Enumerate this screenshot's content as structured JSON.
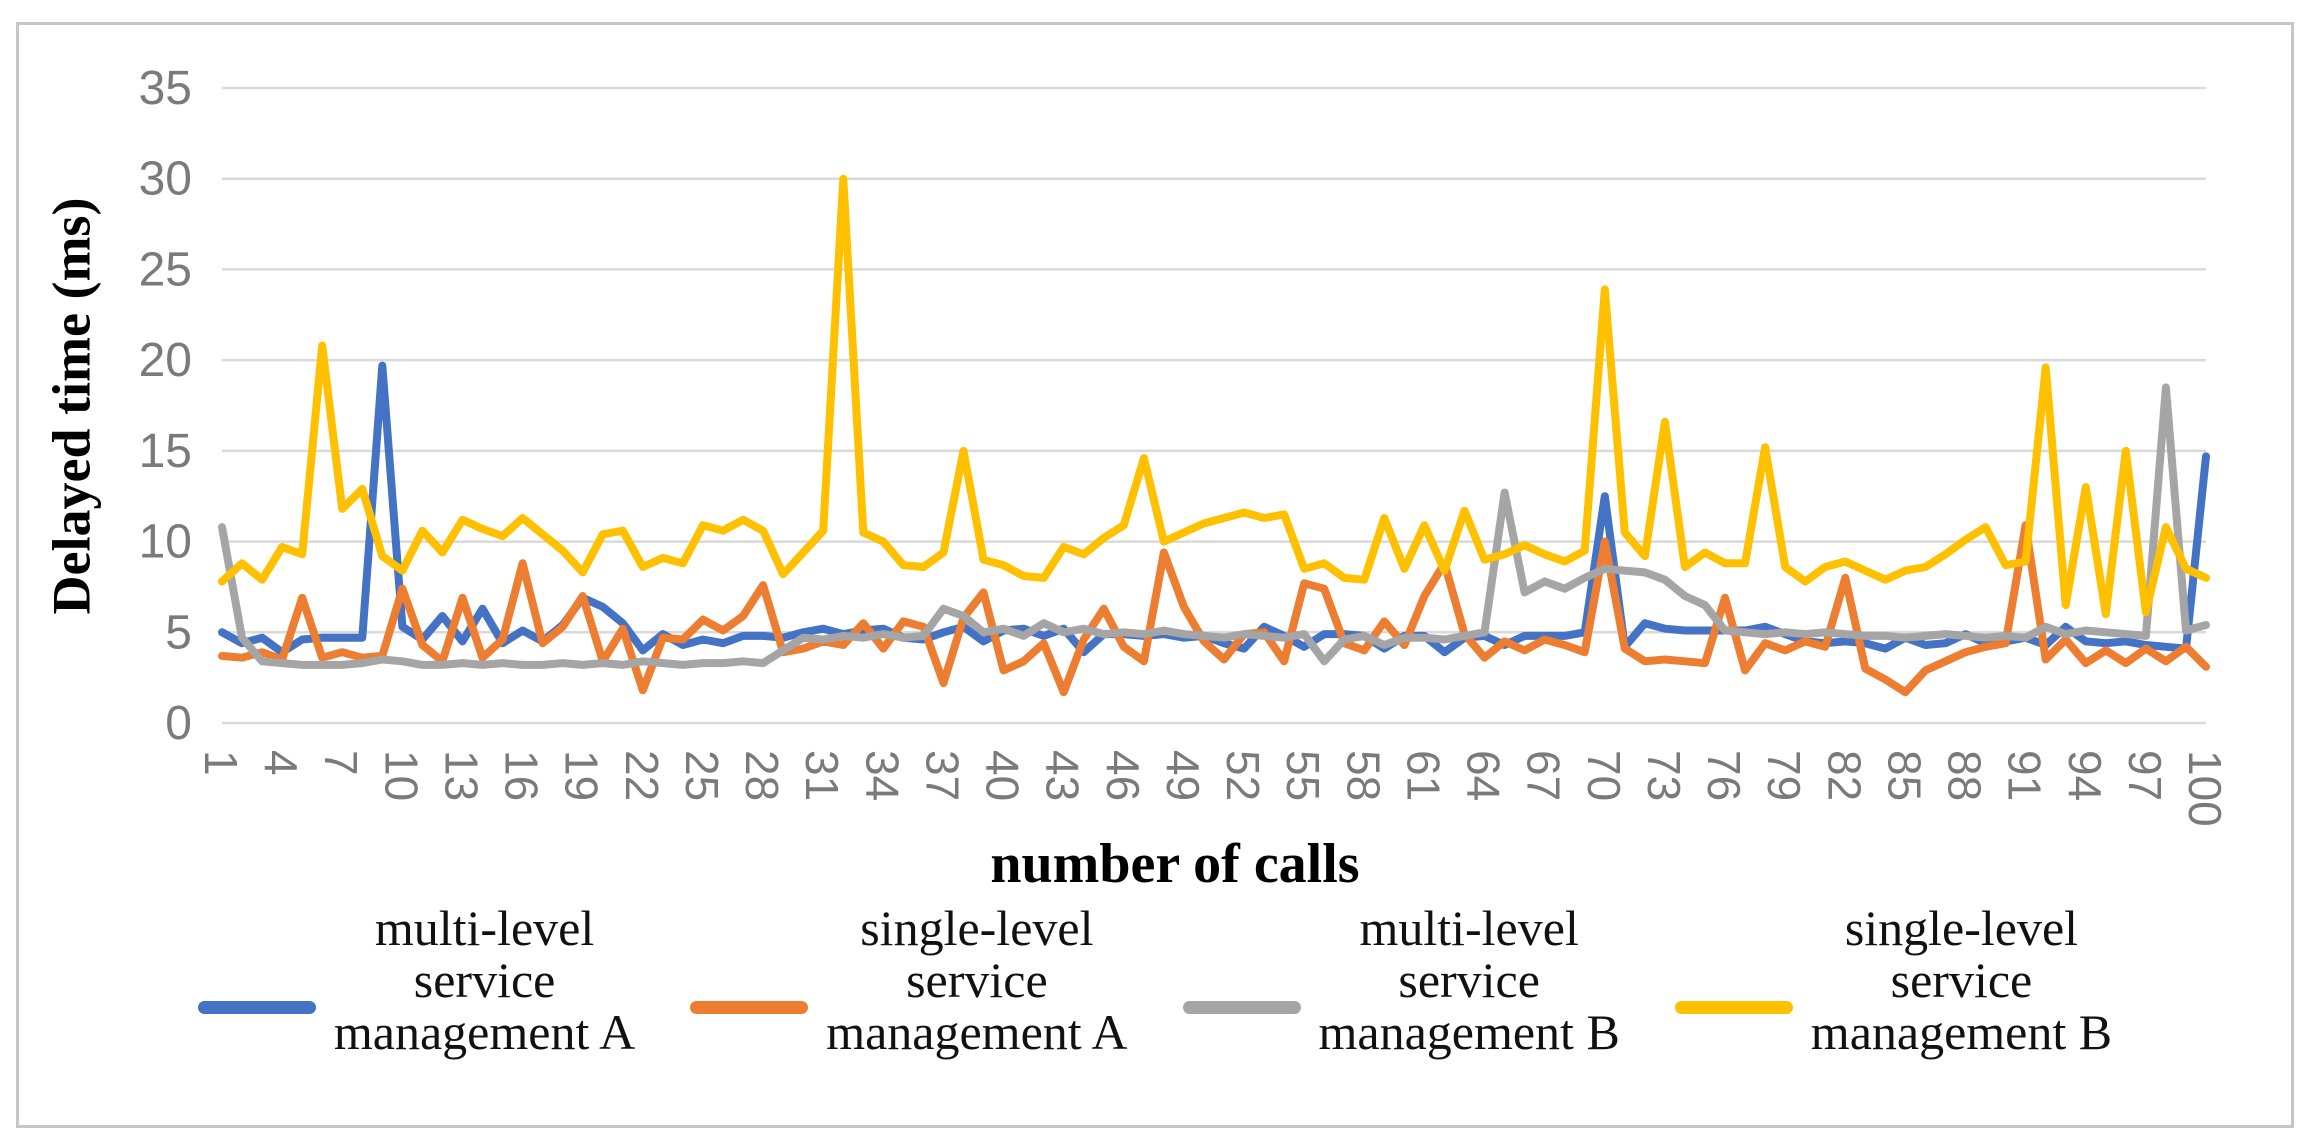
{
  "chart_data": {
    "type": "line",
    "title": "",
    "xlabel": "number of calls",
    "ylabel": "Delayed time (ms)",
    "x_range": [
      1,
      100
    ],
    "x_tick_labels": [
      1,
      4,
      7,
      10,
      13,
      16,
      19,
      22,
      25,
      28,
      31,
      34,
      37,
      40,
      43,
      46,
      49,
      52,
      55,
      58,
      61,
      64,
      67,
      70,
      73,
      76,
      79,
      82,
      85,
      88,
      91,
      94,
      97,
      100
    ],
    "ylim": [
      0,
      35
    ],
    "yticks": [
      0,
      5,
      10,
      15,
      20,
      25,
      30,
      35
    ],
    "grid": "horizontal",
    "legend_position": "bottom",
    "series": [
      {
        "name": "multi-level service management A",
        "name_lines": [
          "multi-level",
          "service",
          "management A"
        ],
        "color": "#4472C4",
        "values": [
          5.0,
          4.4,
          4.7,
          3.9,
          4.6,
          4.7,
          4.7,
          4.7,
          19.7,
          5.3,
          4.6,
          5.9,
          4.5,
          6.3,
          4.4,
          5.1,
          4.5,
          5.4,
          6.9,
          6.4,
          5.5,
          4.0,
          4.9,
          4.3,
          4.6,
          4.4,
          4.8,
          4.8,
          4.7,
          5.0,
          5.2,
          4.9,
          5.1,
          5.2,
          4.7,
          4.6,
          5.0,
          5.3,
          4.5,
          5.1,
          5.2,
          4.8,
          5.2,
          3.9,
          4.9,
          4.9,
          4.8,
          4.9,
          4.7,
          4.8,
          4.4,
          4.1,
          5.3,
          4.8,
          4.2,
          4.9,
          4.9,
          4.8,
          4.1,
          4.8,
          4.8,
          3.9,
          4.7,
          4.8,
          4.3,
          4.8,
          4.8,
          4.8,
          5.0,
          12.5,
          4.2,
          5.5,
          5.2,
          5.1,
          5.1,
          5.1,
          5.1,
          5.3,
          4.9,
          4.5,
          4.4,
          4.5,
          4.4,
          4.1,
          4.7,
          4.3,
          4.4,
          4.9,
          4.4,
          4.5,
          4.7,
          4.3,
          5.3,
          4.5,
          4.4,
          4.5,
          4.3,
          4.2,
          4.1,
          14.7
        ]
      },
      {
        "name": "single-level service management A",
        "name_lines": [
          "single-level",
          "service",
          "management A"
        ],
        "color": "#ED7D31",
        "values": [
          3.7,
          3.6,
          3.9,
          3.5,
          6.9,
          3.6,
          3.9,
          3.6,
          3.7,
          7.4,
          4.3,
          3.4,
          6.9,
          3.6,
          4.6,
          8.8,
          4.4,
          5.3,
          7.0,
          3.4,
          5.2,
          1.8,
          4.7,
          4.6,
          5.7,
          5.1,
          5.9,
          7.6,
          3.9,
          4.1,
          4.5,
          4.3,
          5.5,
          4.1,
          5.6,
          5.3,
          2.2,
          5.8,
          7.2,
          2.9,
          3.4,
          4.4,
          1.7,
          4.6,
          6.3,
          4.2,
          3.4,
          9.4,
          6.4,
          4.5,
          3.5,
          4.9,
          5.0,
          3.4,
          7.7,
          7.4,
          4.4,
          4.0,
          5.6,
          4.3,
          7.0,
          8.8,
          4.9,
          3.6,
          4.5,
          4.0,
          4.6,
          4.3,
          3.9,
          10.0,
          4.1,
          3.4,
          3.5,
          3.4,
          3.3,
          6.9,
          2.9,
          4.4,
          4.0,
          4.5,
          4.2,
          8.0,
          3.0,
          2.4,
          1.7,
          2.9,
          3.4,
          3.9,
          4.2,
          4.4,
          10.9,
          3.5,
          4.6,
          3.3,
          4.0,
          3.3,
          4.1,
          3.4,
          4.2,
          3.1
        ]
      },
      {
        "name": "multi-level service management B",
        "name_lines": [
          "multi-level",
          "service",
          "management B"
        ],
        "color": "#A5A5A5",
        "values": [
          10.8,
          4.7,
          3.4,
          3.3,
          3.2,
          3.2,
          3.2,
          3.3,
          3.5,
          3.4,
          3.2,
          3.2,
          3.3,
          3.2,
          3.3,
          3.2,
          3.2,
          3.3,
          3.2,
          3.3,
          3.2,
          3.4,
          3.3,
          3.2,
          3.3,
          3.3,
          3.4,
          3.3,
          4.0,
          4.7,
          4.6,
          4.8,
          4.7,
          4.9,
          4.7,
          4.8,
          6.3,
          5.9,
          5.0,
          5.2,
          4.8,
          5.5,
          5.0,
          5.2,
          4.9,
          5.0,
          4.9,
          5.1,
          4.9,
          4.8,
          4.7,
          4.9,
          4.8,
          4.7,
          4.9,
          3.4,
          4.6,
          4.8,
          4.3,
          4.7,
          4.7,
          4.6,
          4.8,
          5.0,
          12.7,
          7.2,
          7.8,
          7.4,
          8.0,
          8.5,
          8.4,
          8.3,
          7.9,
          7.0,
          6.5,
          5.1,
          5.0,
          4.9,
          5.0,
          4.9,
          5.0,
          4.9,
          4.8,
          4.8,
          4.7,
          4.8,
          4.9,
          4.8,
          4.7,
          4.8,
          4.7,
          5.3,
          4.9,
          5.1,
          5.0,
          4.9,
          4.8,
          18.5,
          5.1,
          5.4
        ]
      },
      {
        "name": "single-level service management B",
        "name_lines": [
          "single-level",
          "service",
          "management B"
        ],
        "color": "#FFC000",
        "values": [
          7.8,
          8.8,
          7.9,
          9.7,
          9.3,
          20.8,
          11.8,
          12.9,
          9.2,
          8.4,
          10.6,
          9.4,
          11.2,
          10.7,
          10.3,
          11.3,
          10.4,
          9.5,
          8.3,
          10.4,
          10.6,
          8.6,
          9.1,
          8.8,
          10.9,
          10.6,
          11.2,
          10.6,
          8.2,
          9.4,
          10.6,
          30.0,
          10.5,
          10.0,
          8.7,
          8.6,
          9.4,
          15.0,
          9.0,
          8.7,
          8.1,
          8.0,
          9.7,
          9.3,
          10.2,
          10.9,
          14.6,
          10.0,
          10.5,
          11.0,
          11.3,
          11.6,
          11.3,
          11.5,
          8.5,
          8.8,
          8.0,
          7.9,
          11.3,
          8.5,
          10.9,
          8.4,
          11.7,
          9.0,
          9.3,
          9.8,
          9.3,
          8.9,
          9.5,
          23.9,
          10.5,
          9.2,
          16.6,
          8.6,
          9.4,
          8.8,
          8.8,
          15.2,
          8.6,
          7.8,
          8.6,
          8.9,
          8.4,
          7.9,
          8.4,
          8.6,
          9.3,
          10.1,
          10.8,
          8.7,
          8.9,
          19.6,
          6.5,
          13.0,
          6.0,
          15.0,
          6.1,
          10.8,
          8.5,
          8.0
        ]
      }
    ]
  },
  "colors": {
    "gridline": "#D9D9D9",
    "tick_label": "#7A7A7A",
    "axis_title": "#000000",
    "legend_text": "#111111",
    "frame_border": "#C6C6C6",
    "background": "#FFFFFF"
  }
}
